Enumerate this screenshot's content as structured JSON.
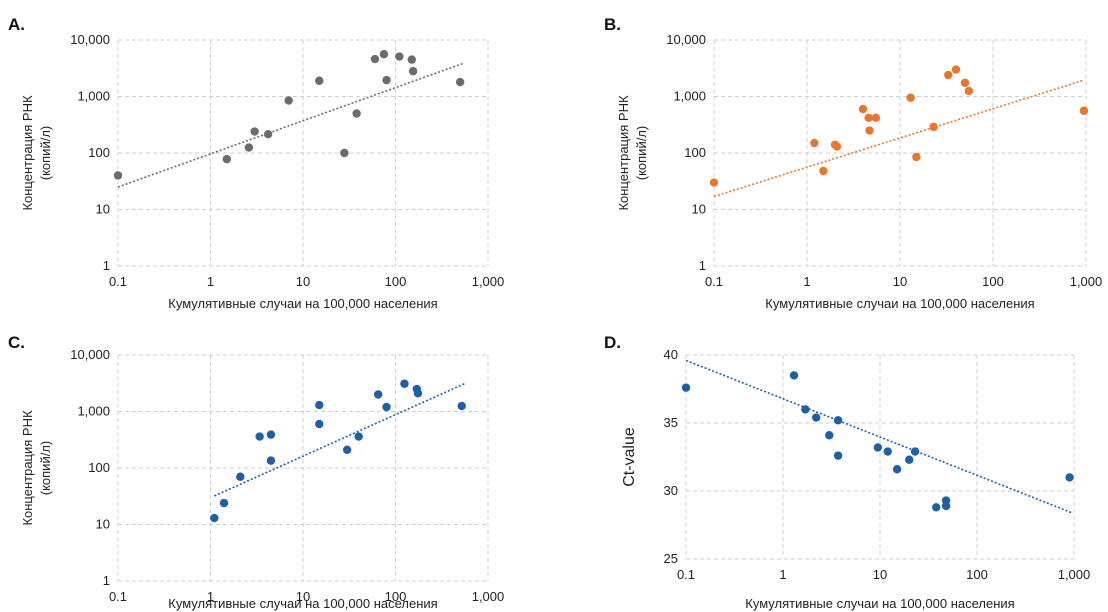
{
  "chart_data": [
    {
      "panel": "A.",
      "type": "scatter",
      "color": "#6b6b6b",
      "xlabel": "Кумулятивные случаи на 100,000 населения",
      "ylabel": [
        "Концентрация РНК",
        "(копий/л)"
      ],
      "x_scale": "log",
      "y_scale": "log",
      "xlim": [
        0.1,
        1000
      ],
      "ylim": [
        1,
        10000
      ],
      "x_ticks": [
        0.1,
        1,
        10,
        100,
        1000
      ],
      "x_tick_labels": [
        "0.1",
        "1",
        "10",
        "100",
        "1,000"
      ],
      "y_ticks": [
        1,
        10,
        100,
        1000,
        10000
      ],
      "y_tick_labels": [
        "1",
        "10",
        "100",
        "1,000",
        "10,000"
      ],
      "grid": true,
      "points": [
        [
          0.1,
          40
        ],
        [
          1.5,
          78
        ],
        [
          2.6,
          125
        ],
        [
          3.0,
          240
        ],
        [
          4.2,
          215
        ],
        [
          7.0,
          850
        ],
        [
          15,
          1900
        ],
        [
          28,
          100
        ],
        [
          38,
          500
        ],
        [
          60,
          4600
        ],
        [
          75,
          5600
        ],
        [
          80,
          1950
        ],
        [
          110,
          5100
        ],
        [
          150,
          4500
        ],
        [
          155,
          2800
        ],
        [
          500,
          1800
        ]
      ],
      "trendline": [
        [
          0.1,
          25
        ],
        [
          550,
          3900
        ]
      ]
    },
    {
      "panel": "B.",
      "type": "scatter",
      "color": "#e8772e",
      "xlabel": "Кумулятивные случаи на 100,000 населения",
      "ylabel": [
        "Концентрация РНК",
        "(копий/л)"
      ],
      "x_scale": "log",
      "y_scale": "log",
      "xlim": [
        0.1,
        1000
      ],
      "ylim": [
        1,
        10000
      ],
      "x_ticks": [
        0.1,
        1,
        10,
        100,
        1000
      ],
      "x_tick_labels": [
        "0.1",
        "1",
        "10",
        "100",
        "1,000"
      ],
      "y_ticks": [
        1,
        10,
        100,
        1000,
        10000
      ],
      "y_tick_labels": [
        "1",
        "10",
        "100",
        "1,000",
        "10,000"
      ],
      "grid": true,
      "points": [
        [
          0.1,
          30
        ],
        [
          1.2,
          150
        ],
        [
          1.5,
          48
        ],
        [
          2.0,
          140
        ],
        [
          2.1,
          130
        ],
        [
          4.0,
          600
        ],
        [
          4.6,
          420
        ],
        [
          4.7,
          250
        ],
        [
          5.5,
          420
        ],
        [
          13,
          950
        ],
        [
          15,
          85
        ],
        [
          23,
          290
        ],
        [
          33,
          2400
        ],
        [
          40,
          3000
        ],
        [
          50,
          1750
        ],
        [
          55,
          1250
        ],
        [
          950,
          560
        ]
      ],
      "trendline": [
        [
          0.1,
          17
        ],
        [
          950,
          1950
        ]
      ]
    },
    {
      "panel": "C.",
      "type": "scatter",
      "color": "#1f5fa8",
      "xlabel": "Кумулятивные случаи на 100,000 населения",
      "ylabel": [
        "Концентрация РНК",
        "(копий/л)"
      ],
      "x_scale": "log",
      "y_scale": "log",
      "xlim": [
        0.1,
        1000
      ],
      "ylim": [
        1,
        10000
      ],
      "x_ticks": [
        0.1,
        1,
        10,
        100,
        1000
      ],
      "x_tick_labels": [
        "0.1",
        "1",
        "10",
        "100",
        "1,000"
      ],
      "y_ticks": [
        1,
        10,
        100,
        1000,
        10000
      ],
      "y_tick_labels": [
        "1",
        "10",
        "100",
        "1,000",
        "10,000"
      ],
      "grid": true,
      "points": [
        [
          1.1,
          13
        ],
        [
          1.4,
          24
        ],
        [
          2.1,
          70
        ],
        [
          3.4,
          360
        ],
        [
          4.5,
          390
        ],
        [
          4.5,
          135
        ],
        [
          15,
          1300
        ],
        [
          15,
          600
        ],
        [
          30,
          210
        ],
        [
          40,
          360
        ],
        [
          65,
          2000
        ],
        [
          80,
          1200
        ],
        [
          125,
          3100
        ],
        [
          170,
          2500
        ],
        [
          175,
          2100
        ],
        [
          520,
          1250
        ]
      ],
      "trendline": [
        [
          1.1,
          32
        ],
        [
          580,
          3200
        ]
      ]
    },
    {
      "panel": "D.",
      "type": "scatter",
      "color": "#1f5fa8",
      "xlabel": "Кумулятивные случаи на 100,000 населения",
      "ylabel": [
        "Ct-value"
      ],
      "x_scale": "log",
      "y_scale": "linear",
      "xlim": [
        0.1,
        1000
      ],
      "ylim": [
        25,
        40
      ],
      "x_ticks": [
        0.1,
        1,
        10,
        100,
        1000
      ],
      "x_tick_labels": [
        "0.1",
        "1",
        "10",
        "100",
        "1,000"
      ],
      "y_ticks": [
        25,
        30,
        35,
        40
      ],
      "y_tick_labels": [
        "25",
        "30",
        "35",
        "40"
      ],
      "grid": true,
      "points": [
        [
          0.1,
          37.6
        ],
        [
          1.3,
          38.5
        ],
        [
          1.7,
          36.0
        ],
        [
          2.2,
          35.4
        ],
        [
          3.0,
          34.1
        ],
        [
          3.7,
          35.2
        ],
        [
          3.7,
          32.6
        ],
        [
          9.5,
          33.2
        ],
        [
          12,
          32.9
        ],
        [
          15,
          31.6
        ],
        [
          20,
          32.3
        ],
        [
          23,
          32.9
        ],
        [
          38,
          28.8
        ],
        [
          48,
          29.3
        ],
        [
          48,
          28.9
        ],
        [
          900,
          31.0
        ]
      ],
      "trendline": [
        [
          0.1,
          39.6
        ],
        [
          950,
          28.4
        ]
      ]
    }
  ]
}
